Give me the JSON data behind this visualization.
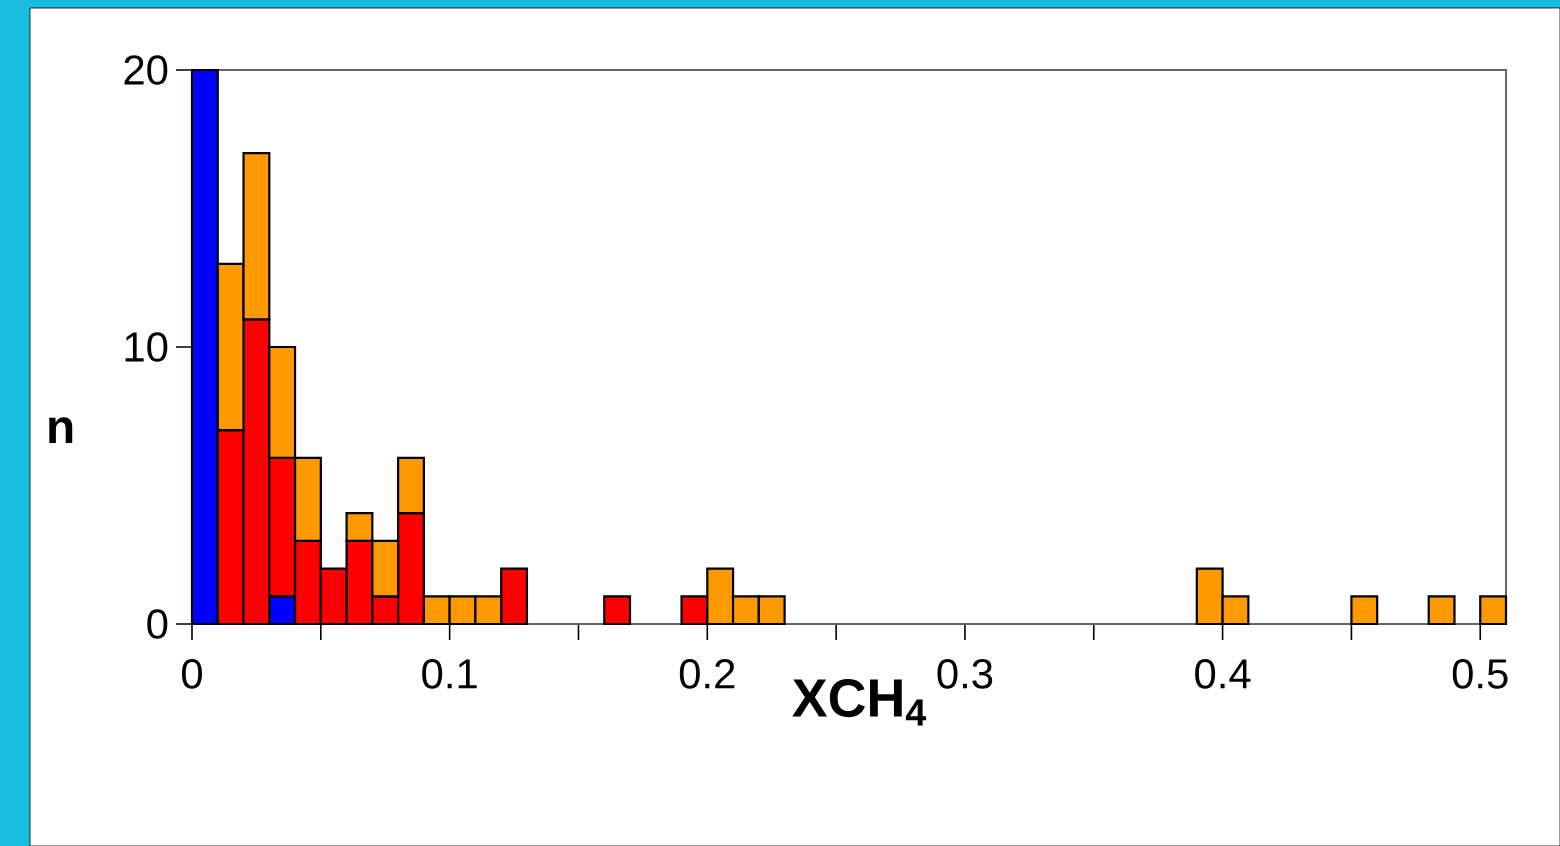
{
  "chart_data": {
    "type": "bar",
    "stacked": true,
    "xlabel": "XCH$_{4}$",
    "ylabel": "n",
    "x": [
      0.005,
      0.015,
      0.025,
      0.035,
      0.045,
      0.055,
      0.065,
      0.075,
      0.085,
      0.095,
      0.105,
      0.115,
      0.125,
      0.135,
      0.145,
      0.155,
      0.165,
      0.175,
      0.185,
      0.195,
      0.205,
      0.215,
      0.225,
      0.235,
      0.245,
      0.255,
      0.265,
      0.275,
      0.285,
      0.295,
      0.305,
      0.315,
      0.325,
      0.335,
      0.345,
      0.355,
      0.365,
      0.375,
      0.385,
      0.395,
      0.405,
      0.415,
      0.425,
      0.435,
      0.445,
      0.455,
      0.465,
      0.475,
      0.485,
      0.495,
      0.505
    ],
    "series": [
      {
        "color": "#0000ff",
        "values": [
          20,
          0,
          0,
          1,
          0,
          0,
          0,
          0,
          0,
          0,
          0,
          0,
          0,
          0,
          0,
          0,
          0,
          0,
          0,
          0,
          0,
          0,
          0,
          0,
          0,
          0,
          0,
          0,
          0,
          0,
          0,
          0,
          0,
          0,
          0,
          0,
          0,
          0,
          0,
          0,
          0,
          0,
          0,
          0,
          0,
          0,
          0,
          0,
          0,
          0,
          0
        ]
      },
      {
        "color": "#ff0000",
        "values": [
          0,
          7,
          11,
          5,
          3,
          2,
          3,
          1,
          4,
          0,
          0,
          0,
          2,
          0,
          0,
          0,
          1,
          0,
          0,
          1,
          0,
          0,
          0,
          0,
          0,
          0,
          0,
          0,
          0,
          0,
          0,
          0,
          0,
          0,
          0,
          0,
          0,
          0,
          0,
          0,
          0,
          0,
          0,
          0,
          0,
          0,
          0,
          0,
          0,
          0,
          0
        ]
      },
      {
        "color": "#ff9900",
        "values": [
          0,
          6,
          6,
          4,
          3,
          0,
          1,
          2,
          2,
          1,
          1,
          1,
          0,
          0,
          0,
          0,
          0,
          0,
          0,
          0,
          2,
          1,
          1,
          0,
          0,
          0,
          0,
          0,
          0,
          0,
          0,
          0,
          0,
          0,
          0,
          0,
          0,
          0,
          0,
          2,
          1,
          0,
          0,
          0,
          0,
          1,
          0,
          0,
          1,
          0,
          1
        ]
      }
    ],
    "xlim": [
      0,
      0.51
    ],
    "ylim": [
      0,
      20
    ],
    "xticks": [
      0,
      {
        "value": 0.05,
        "label": null
      },
      0.1,
      {
        "value": 0.15,
        "label": null
      },
      0.2,
      {
        "value": 0.25,
        "label": null
      },
      0.3,
      {
        "value": 0.35,
        "label": null
      },
      0.4,
      {
        "value": 0.45,
        "label": null
      },
      0.5
    ],
    "yticks": [
      0,
      10,
      20
    ]
  }
}
